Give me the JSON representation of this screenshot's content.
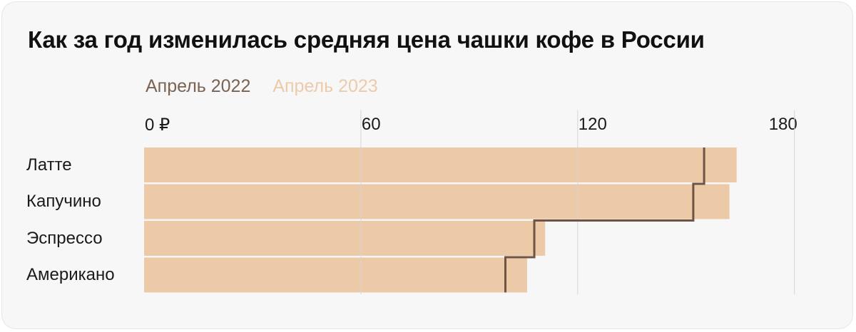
{
  "title": "Как за год изменилась средняя цена чашки кофе в России",
  "colors": {
    "april_2022": "#6f5443",
    "april_2023": "#ecc9a7",
    "grid": "#d6d6d6",
    "legend_2022_text": "#7a6353",
    "legend_2023_text": "#eccbaa"
  },
  "chart_data": {
    "type": "bar",
    "orientation": "horizontal",
    "title": "Как за год изменилась средняя цена чашки кофе в России",
    "categories": [
      "Латте",
      "Капучино",
      "Эспрессо",
      "Американо"
    ],
    "series": [
      {
        "name": "Апрель 2022",
        "style": "step-line",
        "values": [
          155,
          152,
          108,
          100
        ]
      },
      {
        "name": "Апрель 2023",
        "style": "bar",
        "values": [
          164,
          162,
          111,
          106
        ]
      }
    ],
    "ticks": [
      {
        "value": 0,
        "label": "0 ₽"
      },
      {
        "value": 60,
        "label": "60"
      },
      {
        "value": 120,
        "label": "120"
      },
      {
        "value": 180,
        "label": "180"
      }
    ],
    "xlim": [
      0,
      180
    ],
    "grid": true,
    "legend_position": "top-left"
  }
}
